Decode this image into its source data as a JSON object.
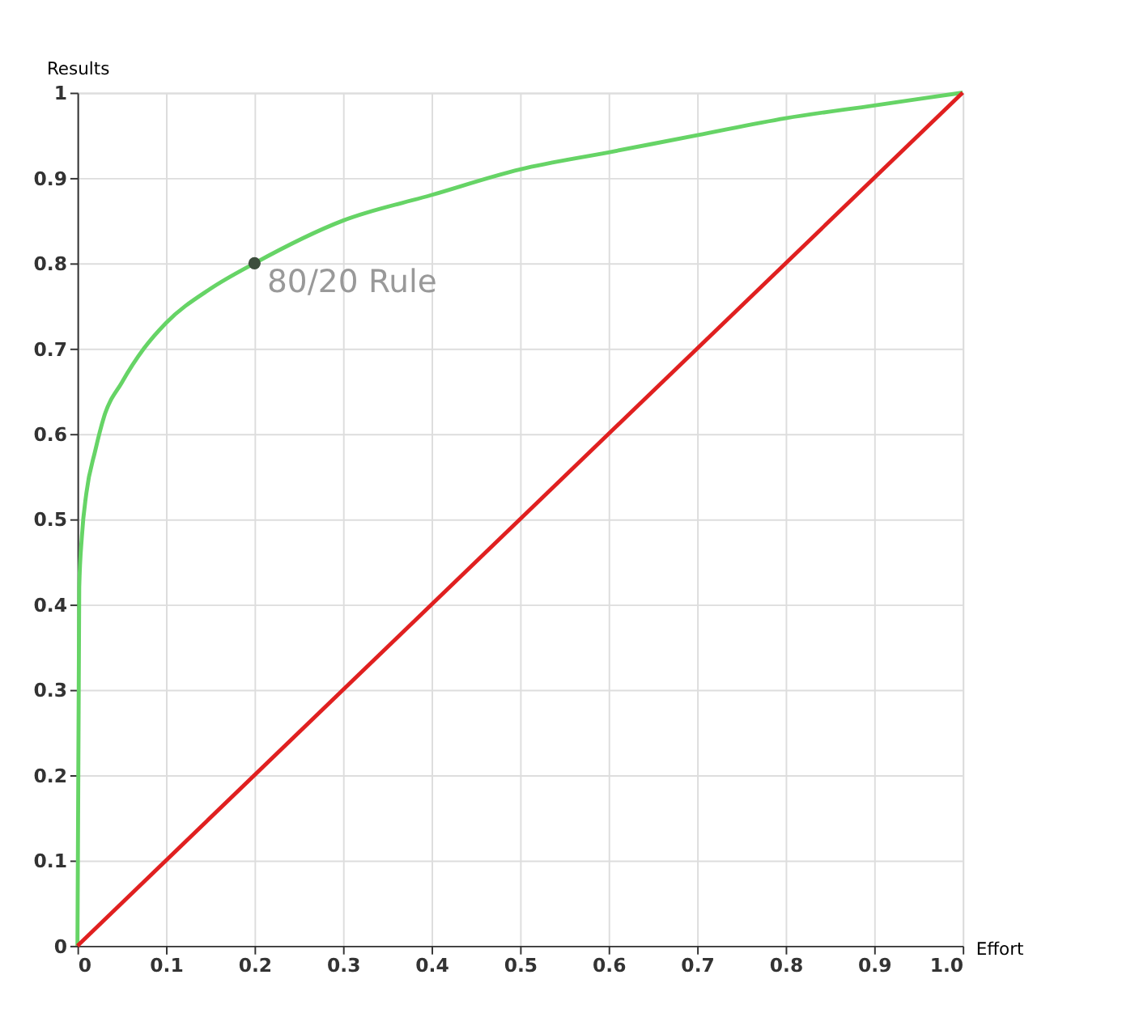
{
  "chart_data": {
    "type": "line",
    "xlabel": "Effort",
    "ylabel": "Results",
    "xlim": [
      0,
      1
    ],
    "ylim": [
      0,
      1
    ],
    "xticks": [
      0,
      0.1,
      0.2,
      0.3,
      0.4,
      0.5,
      0.6,
      0.7,
      0.8,
      0.9,
      {
        "value": 1,
        "label": "1.0"
      }
    ],
    "yticks": [
      0,
      0.1,
      0.2,
      0.3,
      0.4,
      0.5,
      0.6,
      0.7,
      0.8,
      0.9,
      1
    ],
    "grid": true,
    "series": [
      {
        "color": "#66d466",
        "x": [
          0,
          0.002,
          0.005,
          0.01,
          0.02,
          0.03,
          0.05,
          0.075,
          0.1,
          0.15,
          0.2,
          0.3,
          0.4,
          0.5,
          0.6,
          0.7,
          0.8,
          0.9,
          1.0
        ],
        "values": [
          0,
          0.42,
          0.48,
          0.53,
          0.58,
          0.62,
          0.66,
          0.7,
          0.73,
          0.77,
          0.8,
          0.85,
          0.88,
          0.91,
          0.93,
          0.95,
          0.97,
          0.985,
          1.0
        ]
      },
      {
        "color": "#e02020",
        "x": [
          0,
          1
        ],
        "values": [
          0,
          1
        ]
      },
      {
        "type": "scatter",
        "color": "#3d4d3d",
        "x": [
          0.2
        ],
        "values": [
          0.8
        ]
      }
    ],
    "annotations": [
      {
        "text": "80/20 Rule",
        "x": 0.2,
        "y": 0.8
      }
    ]
  }
}
